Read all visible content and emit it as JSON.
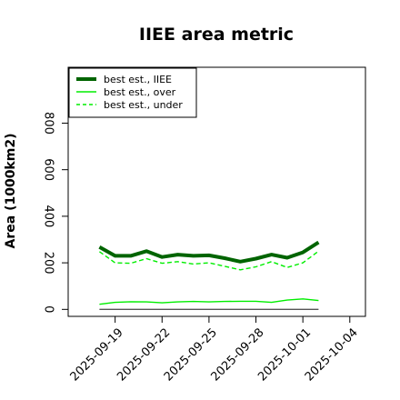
{
  "chart_data": {
    "type": "line",
    "title": "IIEE area metric",
    "xlabel": "",
    "ylabel": "Area (1000km2)",
    "x": [
      "2025-09-18",
      "2025-09-19",
      "2025-09-20",
      "2025-09-21",
      "2025-09-22",
      "2025-09-23",
      "2025-09-24",
      "2025-09-25",
      "2025-09-26",
      "2025-09-27",
      "2025-09-28",
      "2025-09-29",
      "2025-09-30",
      "2025-10-01",
      "2025-10-02"
    ],
    "xticks": [
      "2025-09-19",
      "2025-09-22",
      "2025-09-25",
      "2025-09-28",
      "2025-10-01",
      "2025-10-04"
    ],
    "xlim": [
      "2025-09-16",
      "2025-10-05"
    ],
    "yticks": [
      0,
      200,
      400,
      600,
      800
    ],
    "ylim": [
      -30,
      1040
    ],
    "legend_position": "top-left",
    "grid": false,
    "series": [
      {
        "name": "best est., IIEE",
        "color": "#006400",
        "style": "solid",
        "width": "thick",
        "values": [
          268,
          230,
          230,
          250,
          225,
          235,
          230,
          232,
          220,
          205,
          218,
          235,
          222,
          245,
          288
        ]
      },
      {
        "name": "best est., over",
        "color": "#00ee00",
        "style": "solid",
        "width": "thin",
        "values": [
          22,
          30,
          33,
          32,
          28,
          32,
          34,
          32,
          34,
          35,
          35,
          30,
          40,
          45,
          38
        ]
      },
      {
        "name": "best est., under",
        "color": "#00ee00",
        "style": "dashed",
        "width": "thin",
        "values": [
          248,
          200,
          198,
          218,
          198,
          205,
          195,
          200,
          185,
          170,
          183,
          205,
          180,
          200,
          250
        ]
      },
      {
        "name": "",
        "color": "#555555",
        "style": "solid",
        "width": "thin",
        "values": [
          0,
          0,
          0,
          0,
          0,
          0,
          0,
          0,
          0,
          0,
          0,
          0,
          0,
          0,
          0
        ]
      }
    ]
  }
}
